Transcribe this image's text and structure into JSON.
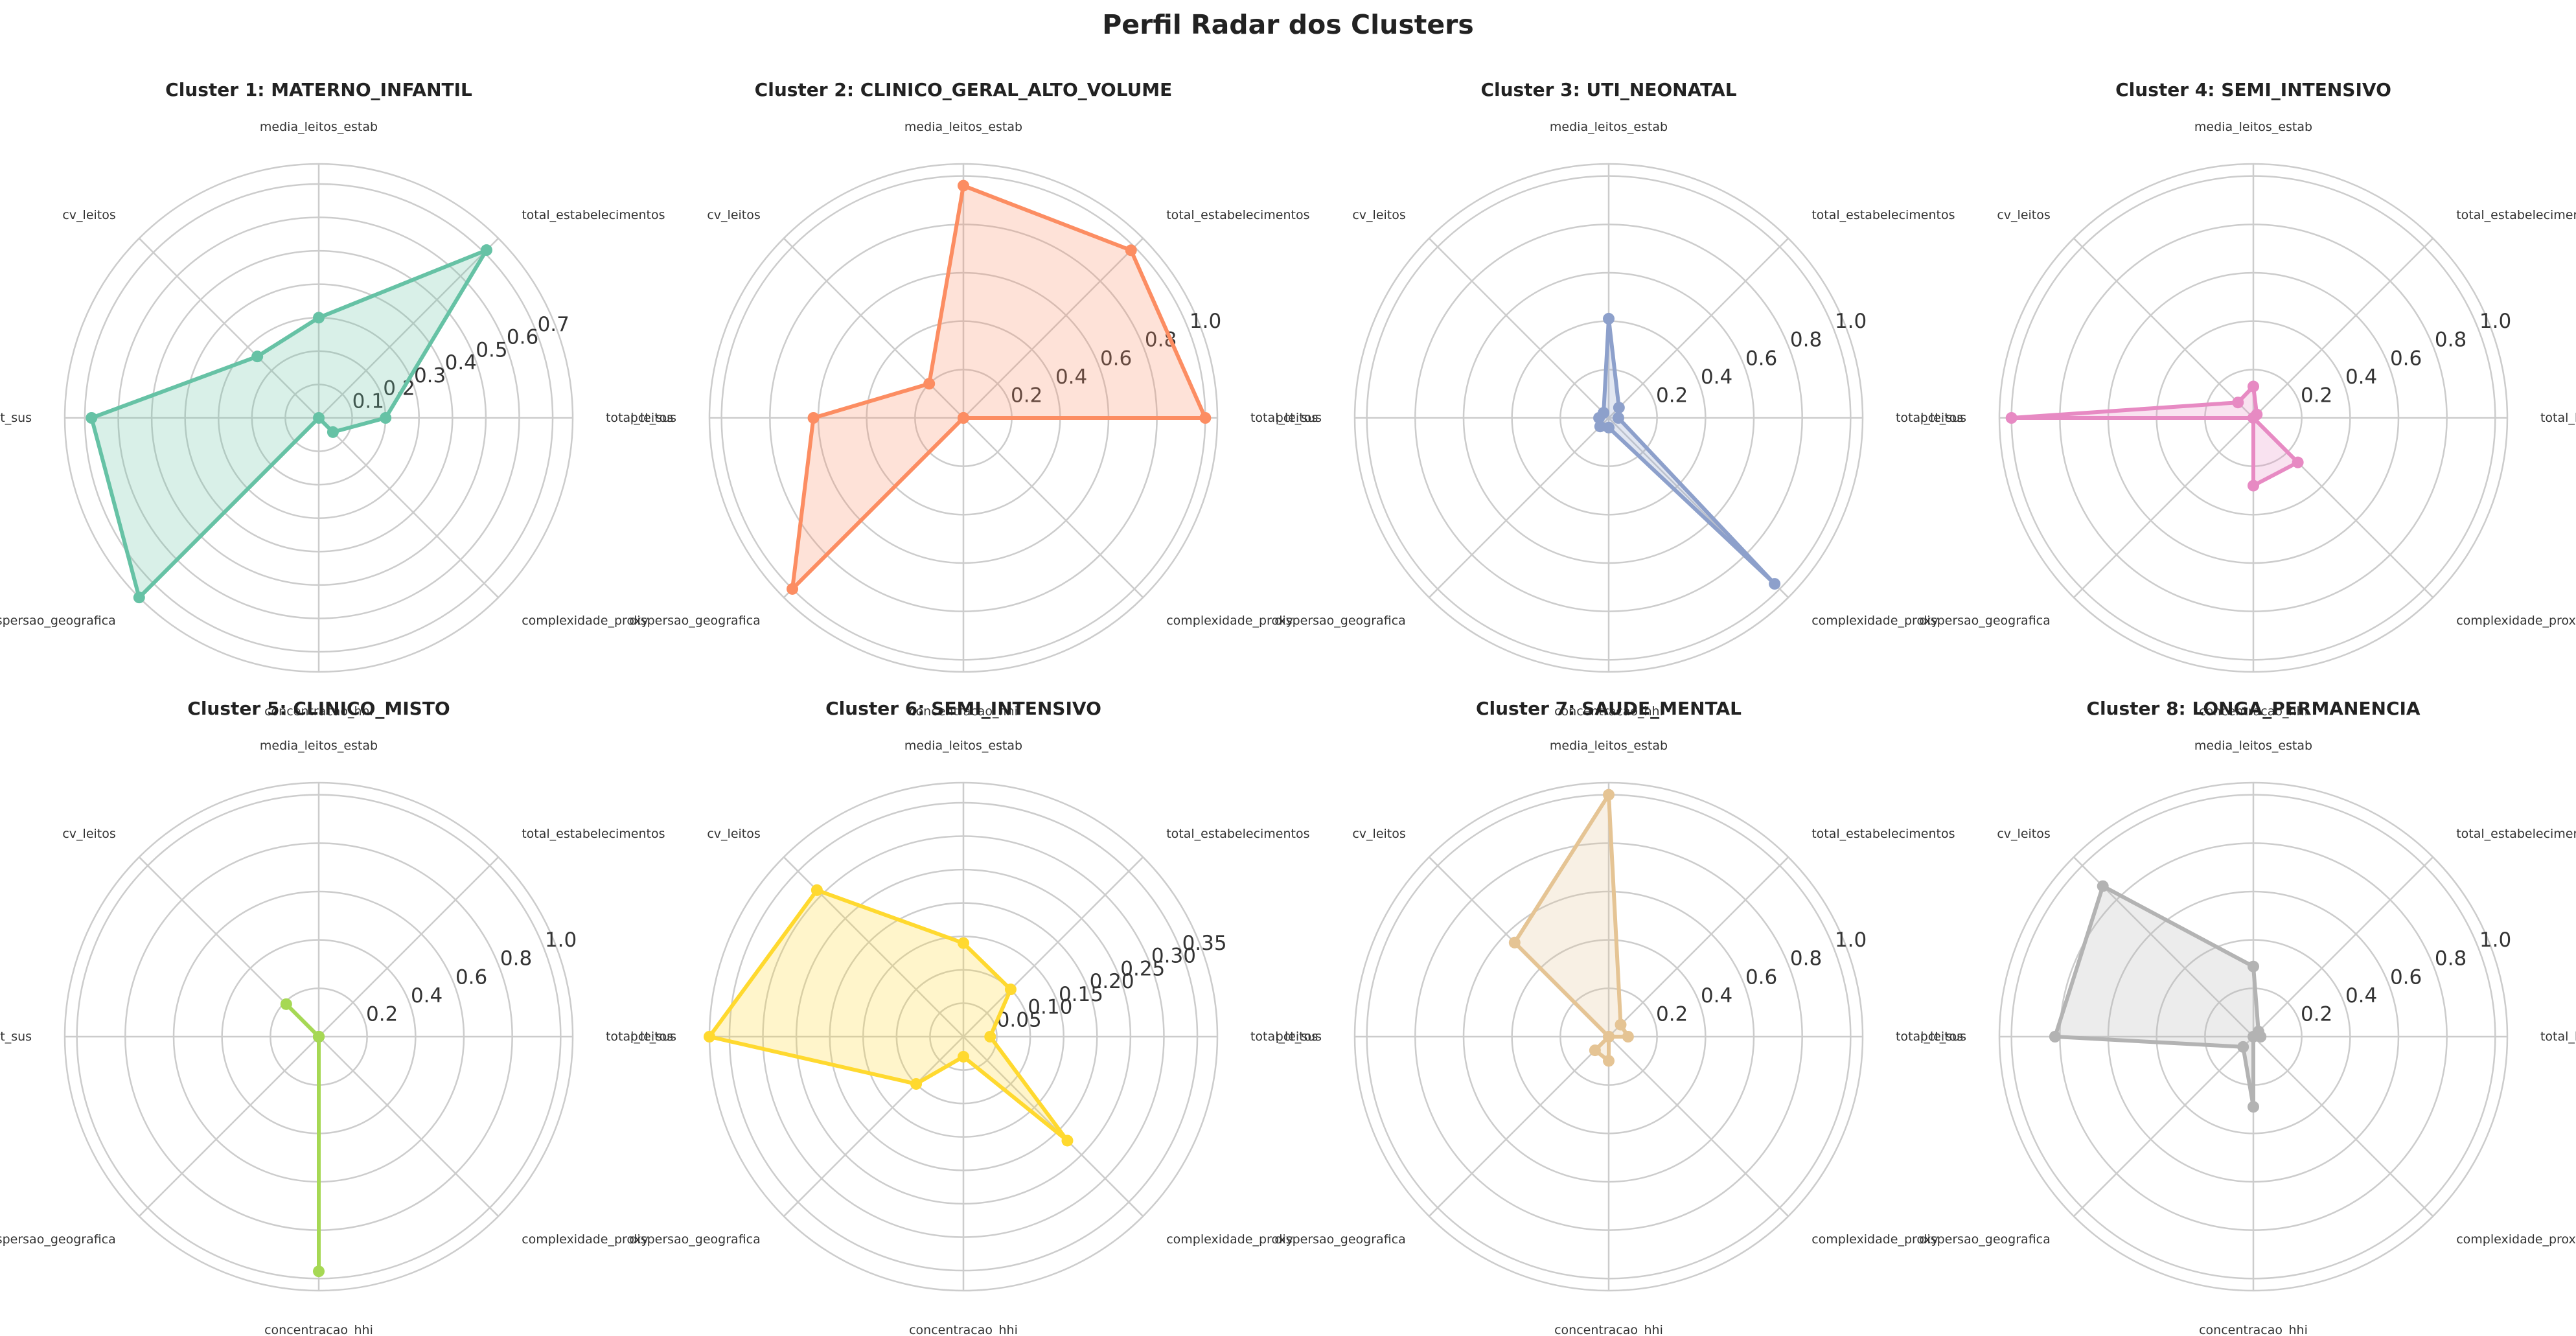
{
  "figure": {
    "title": "Perfil Radar dos Clusters"
  },
  "chart_data": [
    {
      "type": "radar",
      "title": "Cluster 1: MATERNO_INFANTIL",
      "color": "#66c2a5",
      "axes": [
        "total_leitos",
        "total_estabelecimentos",
        "media_leitos_estab",
        "cv_leitos",
        "pct_sus",
        "dispersao_geografica",
        "concentracao_hhi",
        "complexidade_proxy"
      ],
      "values": [
        0.2,
        0.71,
        0.3,
        0.26,
        0.68,
        0.76,
        0.0,
        0.06
      ],
      "rmax": 0.76,
      "ticks": [
        0.1,
        0.2,
        0.3,
        0.4,
        0.5,
        0.6,
        0.7
      ],
      "tick_labels": [
        "0.1",
        "0.2",
        "0.3",
        "0.4",
        "0.5",
        "0.6",
        "0.7"
      ]
    },
    {
      "type": "radar",
      "title": "Cluster 2: CLINICO_GERAL_ALTO_VOLUME",
      "color": "#fc8d62",
      "axes": [
        "total_leitos",
        "total_estabelecimentos",
        "media_leitos_estab",
        "cv_leitos",
        "pct_sus",
        "dispersao_geografica",
        "concentracao_hhi",
        "complexidade_proxy"
      ],
      "values": [
        1.0,
        0.98,
        0.96,
        0.2,
        0.62,
        1.0,
        0.0,
        0.0
      ],
      "rmax": 1.05,
      "ticks": [
        0.2,
        0.4,
        0.6,
        0.8,
        1.0
      ],
      "tick_labels": [
        "0.2",
        "0.4",
        "0.6",
        "0.8",
        "1.0"
      ]
    },
    {
      "type": "radar",
      "title": "Cluster 3: UTI_NEONATAL",
      "color": "#8da0cb",
      "axes": [
        "total_leitos",
        "total_estabelecimentos",
        "media_leitos_estab",
        "cv_leitos",
        "pct_sus",
        "dispersao_geografica",
        "concentracao_hhi",
        "complexidade_proxy"
      ],
      "values": [
        0.04,
        0.06,
        0.41,
        0.03,
        0.04,
        0.05,
        0.04,
        0.97
      ],
      "rmax": 1.05,
      "ticks": [
        0.2,
        0.4,
        0.6,
        0.8,
        1.0
      ],
      "tick_labels": [
        "0.2",
        "0.4",
        "0.6",
        "0.8",
        "1.0"
      ]
    },
    {
      "type": "radar",
      "title": "Cluster 4: SEMI_INTENSIVO",
      "color": "#e78ac3",
      "axes": [
        "total_leitos",
        "total_estabelecimentos",
        "media_leitos_estab",
        "cv_leitos",
        "pct_sus",
        "dispersao_geografica",
        "concentracao_hhi",
        "complexidade_proxy"
      ],
      "values": [
        0.0,
        0.02,
        0.13,
        0.09,
        1.0,
        0.0,
        0.28,
        0.26
      ],
      "rmax": 1.05,
      "ticks": [
        0.2,
        0.4,
        0.6,
        0.8,
        1.0
      ],
      "tick_labels": [
        "0.2",
        "0.4",
        "0.6",
        "0.8",
        "1.0"
      ]
    },
    {
      "type": "radar",
      "title": "Cluster 5: CLINICO_MISTO",
      "color": "#a6d854",
      "axes": [
        "total_leitos",
        "total_estabelecimentos",
        "media_leitos_estab",
        "cv_leitos",
        "pct_sus",
        "dispersao_geografica",
        "concentracao_hhi",
        "complexidade_proxy"
      ],
      "values": [
        0.0,
        0.0,
        0.0,
        0.19,
        0.0,
        0.0,
        0.97,
        0.0
      ],
      "rmax": 1.05,
      "ticks": [
        0.2,
        0.4,
        0.6,
        0.8,
        1.0
      ],
      "tick_labels": [
        "0.2",
        "0.4",
        "0.6",
        "0.8",
        "1.0"
      ]
    },
    {
      "type": "radar",
      "title": "Cluster 6: SEMI_INTENSIVO",
      "color": "#ffd92f",
      "axes": [
        "total_leitos",
        "total_estabelecimentos",
        "media_leitos_estab",
        "cv_leitos",
        "pct_sus",
        "dispersao_geografica",
        "concentracao_hhi",
        "complexidade_proxy"
      ],
      "values": [
        0.04,
        0.1,
        0.14,
        0.31,
        0.38,
        0.1,
        0.03,
        0.22
      ],
      "rmax": 0.38,
      "ticks": [
        0.05,
        0.1,
        0.15,
        0.2,
        0.25,
        0.3,
        0.35
      ],
      "tick_labels": [
        "0.05",
        "0.10",
        "0.15",
        "0.20",
        "0.25",
        "0.30",
        "0.35"
      ]
    },
    {
      "type": "radar",
      "title": "Cluster 7: SAUDE_MENTAL",
      "color": "#e5c494",
      "axes": [
        "total_leitos",
        "total_estabelecimentos",
        "media_leitos_estab",
        "cv_leitos",
        "pct_sus",
        "dispersao_geografica",
        "concentracao_hhi",
        "complexidade_proxy"
      ],
      "values": [
        0.08,
        0.07,
        1.0,
        0.55,
        0.0,
        0.08,
        0.1,
        0.0
      ],
      "rmax": 1.05,
      "ticks": [
        0.2,
        0.4,
        0.6,
        0.8,
        1.0
      ],
      "tick_labels": [
        "0.2",
        "0.4",
        "0.6",
        "0.8",
        "1.0"
      ]
    },
    {
      "type": "radar",
      "title": "Cluster 8: LONGA_PERMANENCIA",
      "color": "#b3b3b3",
      "axes": [
        "total_leitos",
        "total_estabelecimentos",
        "media_leitos_estab",
        "cv_leitos",
        "pct_sus",
        "dispersao_geografica",
        "concentracao_hhi",
        "complexidade_proxy"
      ],
      "values": [
        0.03,
        0.03,
        0.29,
        0.88,
        0.82,
        0.06,
        0.29,
        0.0
      ],
      "rmax": 1.05,
      "ticks": [
        0.2,
        0.4,
        0.6,
        0.8,
        1.0
      ],
      "tick_labels": [
        "0.2",
        "0.4",
        "0.6",
        "0.8",
        "1.0"
      ]
    }
  ]
}
